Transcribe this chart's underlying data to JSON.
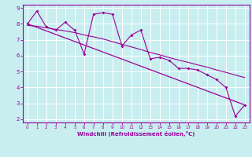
{
  "xlabel": "Windchill (Refroidissement éolien,°C)",
  "background_color": "#c8eef0",
  "line_color": "#990099",
  "grid_color": "#ffffff",
  "xlim": [
    -0.5,
    23.5
  ],
  "ylim": [
    1.8,
    9.2
  ],
  "yticks": [
    2,
    3,
    4,
    5,
    6,
    7,
    8,
    9
  ],
  "xticks": [
    0,
    1,
    2,
    3,
    4,
    5,
    6,
    7,
    8,
    9,
    10,
    11,
    12,
    13,
    14,
    15,
    16,
    17,
    18,
    19,
    20,
    21,
    22,
    23
  ],
  "series1_x": [
    0,
    1,
    2,
    3,
    4,
    5,
    6,
    7,
    8,
    9,
    10,
    11,
    12,
    13,
    14,
    15,
    16,
    17,
    18,
    19,
    20,
    21,
    22,
    23
  ],
  "series1_y": [
    8.0,
    8.8,
    7.8,
    7.6,
    8.1,
    7.6,
    6.1,
    8.6,
    8.7,
    8.6,
    6.6,
    7.3,
    7.6,
    5.8,
    5.9,
    5.7,
    5.2,
    5.2,
    5.1,
    4.8,
    4.5,
    4.0,
    2.2,
    2.9
  ],
  "series2_x": [
    0,
    23
  ],
  "series2_y": [
    8.0,
    2.9
  ],
  "series3_x": [
    0,
    1,
    2,
    3,
    4,
    5,
    6,
    7,
    8,
    9,
    10,
    11,
    12,
    13,
    14,
    15,
    16,
    17,
    18,
    19,
    20,
    21,
    22,
    23
  ],
  "series3_y": [
    7.9,
    7.85,
    7.75,
    7.65,
    7.55,
    7.45,
    7.3,
    7.18,
    7.05,
    6.88,
    6.7,
    6.55,
    6.38,
    6.2,
    6.05,
    5.88,
    5.72,
    5.58,
    5.42,
    5.28,
    5.1,
    4.95,
    4.78,
    4.62
  ]
}
